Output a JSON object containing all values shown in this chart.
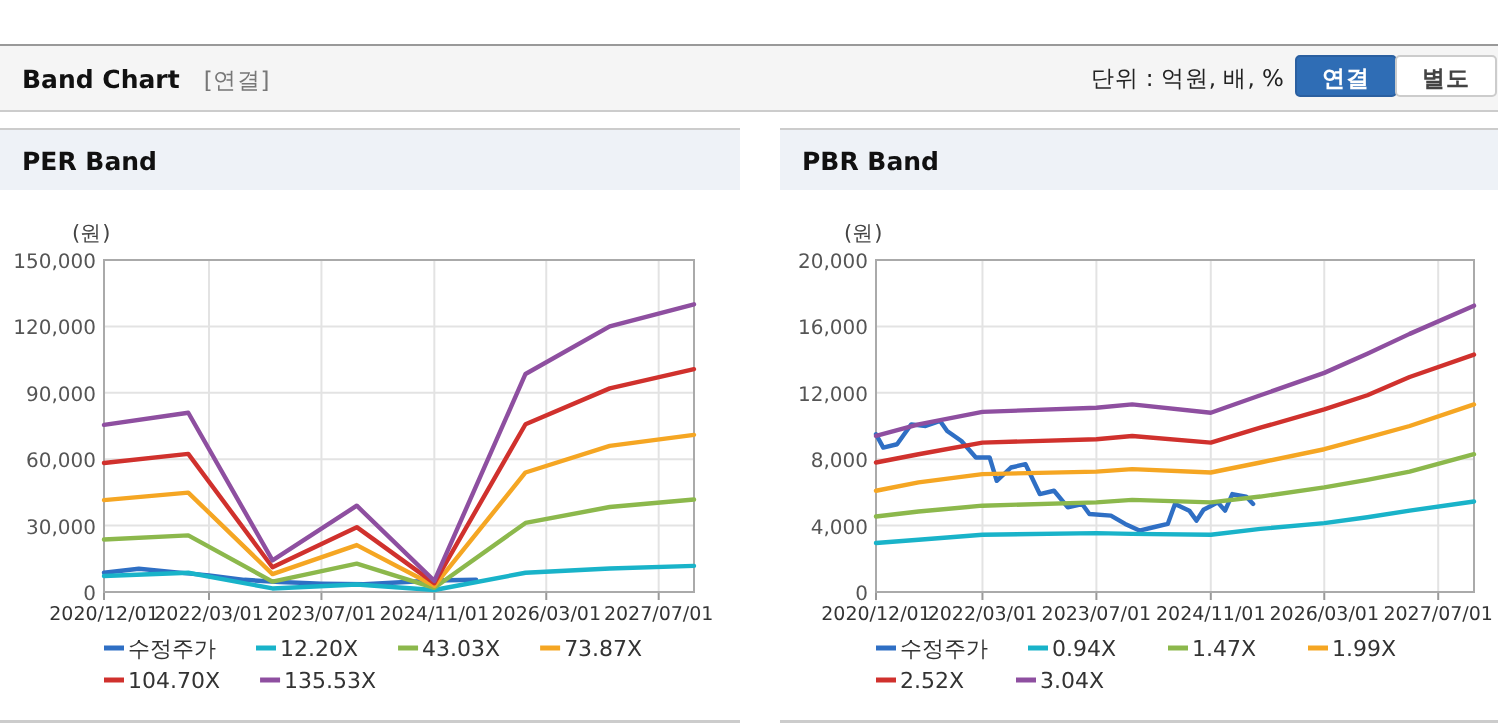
{
  "chart_data": [
    {
      "type": "other",
      "title": "Band Chart",
      "subtitle": "[연결]",
      "annotations": [
        "단위 : 억원, 배, %",
        "연결",
        "별도"
      ]
    },
    {
      "type": "line",
      "title": "PER Band",
      "ylabel": "(원)",
      "xlim": [
        "2020-12-01",
        "2027-12-01"
      ],
      "ylim": [
        0,
        150000
      ],
      "yticks": [
        {
          "value": 0,
          "label": "0"
        },
        {
          "value": 30000,
          "label": "30,000"
        },
        {
          "value": 60000,
          "label": "60,000"
        },
        {
          "value": 90000,
          "label": "90,000"
        },
        {
          "value": 120000,
          "label": "120,000"
        },
        {
          "value": 150000,
          "label": "150,000"
        }
      ],
      "xticks": [
        {
          "value": "2020-12-01",
          "label": "2020/12/01"
        },
        {
          "value": "2022-03-01",
          "label": "2022/03/01"
        },
        {
          "value": "2023-07-01",
          "label": "2023/07/01"
        },
        {
          "value": "2024-11-01",
          "label": "2024/11/01"
        },
        {
          "value": "2026-03-01",
          "label": "2026/03/01"
        },
        {
          "value": "2027-07-01",
          "label": "2027/07/01"
        }
      ],
      "grid": true,
      "legend": "bottom",
      "marker": "none",
      "line_style": "solid",
      "series": [
        {
          "name": "수정주가",
          "color": "#2f6fc4",
          "x": [
            "2020-12-01",
            "2021-05-01",
            "2021-10-01",
            "2022-03-01",
            "2022-08-01",
            "2023-01-01",
            "2023-07-01",
            "2024-01-01",
            "2024-07-01",
            "2024-11-01",
            "2025-05-01"
          ],
          "values": [
            8700,
            10500,
            9000,
            7500,
            5500,
            4500,
            3800,
            3500,
            4500,
            5200,
            5500
          ]
        },
        {
          "name": "12.20X",
          "color": "#19b3c9",
          "x": [
            "2020-12-01",
            "2021-12-01",
            "2022-12-01",
            "2023-12-01",
            "2024-11-01",
            "2025-12-01",
            "2026-12-01",
            "2027-12-01"
          ],
          "values": [
            7200,
            8700,
            1600,
            3400,
            900,
            8700,
            10600,
            11800
          ]
        },
        {
          "name": "43.03X",
          "color": "#8cb84c",
          "x": [
            "2020-12-01",
            "2021-12-01",
            "2022-12-01",
            "2023-12-01",
            "2024-11-01",
            "2025-12-01",
            "2026-12-01",
            "2027-12-01"
          ],
          "values": [
            23700,
            25600,
            4700,
            12800,
            1900,
            31200,
            38400,
            41800
          ]
        },
        {
          "name": "73.87X",
          "color": "#f5a623",
          "x": [
            "2020-12-01",
            "2021-12-01",
            "2022-12-01",
            "2023-12-01",
            "2024-11-01",
            "2025-12-01",
            "2026-12-01",
            "2027-12-01"
          ],
          "values": [
            41500,
            44900,
            8100,
            21200,
            2800,
            54000,
            66000,
            71000
          ]
        },
        {
          "name": "104.70X",
          "color": "#d0312d",
          "x": [
            "2020-12-01",
            "2021-12-01",
            "2022-12-01",
            "2023-12-01",
            "2024-11-01",
            "2025-12-01",
            "2026-12-01",
            "2027-12-01"
          ],
          "values": [
            58300,
            62400,
            11200,
            29300,
            4000,
            75800,
            92000,
            100700
          ]
        },
        {
          "name": "135.53X",
          "color": "#8e4fa0",
          "x": [
            "2020-12-01",
            "2021-12-01",
            "2022-12-01",
            "2023-12-01",
            "2024-11-01",
            "2025-12-01",
            "2026-12-01",
            "2027-12-01"
          ],
          "values": [
            75500,
            81000,
            14300,
            39000,
            5000,
            98500,
            120000,
            130000
          ]
        }
      ]
    },
    {
      "type": "line",
      "title": "PBR Band",
      "ylabel": "(원)",
      "xlim": [
        "2020-12-01",
        "2027-12-01"
      ],
      "ylim": [
        0,
        20000
      ],
      "yticks": [
        {
          "value": 0,
          "label": "0"
        },
        {
          "value": 4000,
          "label": "4,000"
        },
        {
          "value": 8000,
          "label": "8,000"
        },
        {
          "value": 12000,
          "label": "12,000"
        },
        {
          "value": 16000,
          "label": "16,000"
        },
        {
          "value": 20000,
          "label": "20,000"
        }
      ],
      "xticks": [
        {
          "value": "2020-12-01",
          "label": "2020/12/01"
        },
        {
          "value": "2022-03-01",
          "label": "2022/03/01"
        },
        {
          "value": "2023-07-01",
          "label": "2023/07/01"
        },
        {
          "value": "2024-11-01",
          "label": "2024/11/01"
        },
        {
          "value": "2026-03-01",
          "label": "2026/03/01"
        },
        {
          "value": "2027-07-01",
          "label": "2027/07/01"
        }
      ],
      "grid": true,
      "legend": "bottom",
      "marker": "none",
      "line_style": "solid",
      "series": [
        {
          "name": "수정주가",
          "color": "#2f6fc4",
          "x": [
            "2020-12-01",
            "2021-01-01",
            "2021-03-01",
            "2021-05-01",
            "2021-07-01",
            "2021-09-01",
            "2021-10-01",
            "2021-12-01",
            "2022-02-01",
            "2022-04-01",
            "2022-05-01",
            "2022-07-01",
            "2022-09-01",
            "2022-11-01",
            "2023-01-01",
            "2023-03-01",
            "2023-05-01",
            "2023-06-01",
            "2023-09-01",
            "2023-11-01",
            "2024-01-01",
            "2024-03-01",
            "2024-05-01",
            "2024-06-01",
            "2024-08-01",
            "2024-09-01",
            "2024-10-01",
            "2024-12-01",
            "2025-01-01",
            "2025-02-01",
            "2025-04-01",
            "2025-05-01"
          ],
          "values": [
            9500,
            8700,
            8900,
            10100,
            10000,
            10300,
            9700,
            9100,
            8100,
            8100,
            6700,
            7500,
            7700,
            5900,
            6100,
            5100,
            5300,
            4700,
            4600,
            4100,
            3700,
            3900,
            4100,
            5300,
            4900,
            4300,
            4950,
            5400,
            4900,
            5900,
            5750,
            5300
          ]
        },
        {
          "name": "0.94X",
          "color": "#19b3c9",
          "x": [
            "2020-12-01",
            "2021-06-01",
            "2022-03-01",
            "2023-07-01",
            "2023-12-01",
            "2024-11-01",
            "2025-06-01",
            "2026-03-01",
            "2026-09-01",
            "2027-03-01",
            "2027-12-01"
          ],
          "values": [
            2950,
            3150,
            3450,
            3550,
            3500,
            3450,
            3800,
            4150,
            4500,
            4900,
            5450
          ]
        },
        {
          "name": "1.47X",
          "color": "#8cb84c",
          "x": [
            "2020-12-01",
            "2021-06-01",
            "2022-03-01",
            "2023-07-01",
            "2023-12-01",
            "2024-11-01",
            "2025-06-01",
            "2026-03-01",
            "2026-09-01",
            "2027-03-01",
            "2027-12-01"
          ],
          "values": [
            4550,
            4850,
            5200,
            5400,
            5550,
            5400,
            5750,
            6300,
            6750,
            7250,
            8300
          ]
        },
        {
          "name": "1.99X",
          "color": "#f5a623",
          "x": [
            "2020-12-01",
            "2021-06-01",
            "2022-03-01",
            "2023-07-01",
            "2023-12-01",
            "2024-11-01",
            "2025-06-01",
            "2026-03-01",
            "2026-09-01",
            "2027-03-01",
            "2027-12-01"
          ],
          "values": [
            6100,
            6600,
            7100,
            7250,
            7400,
            7200,
            7800,
            8600,
            9300,
            10000,
            11300
          ]
        },
        {
          "name": "2.52X",
          "color": "#d0312d",
          "x": [
            "2020-12-01",
            "2021-06-01",
            "2022-03-01",
            "2023-07-01",
            "2023-12-01",
            "2024-11-01",
            "2025-06-01",
            "2026-03-01",
            "2026-09-01",
            "2027-03-01",
            "2027-12-01"
          ],
          "values": [
            7800,
            8300,
            9000,
            9200,
            9400,
            9000,
            9900,
            11000,
            11850,
            12950,
            14300
          ]
        },
        {
          "name": "3.04X",
          "color": "#8e4fa0",
          "x": [
            "2020-12-01",
            "2021-06-01",
            "2022-03-01",
            "2023-07-01",
            "2023-12-01",
            "2024-11-01",
            "2025-06-01",
            "2026-03-01",
            "2026-09-01",
            "2027-03-01",
            "2027-12-01"
          ],
          "values": [
            9400,
            10100,
            10850,
            11100,
            11300,
            10800,
            11850,
            13200,
            14350,
            15550,
            17250
          ]
        }
      ]
    }
  ]
}
